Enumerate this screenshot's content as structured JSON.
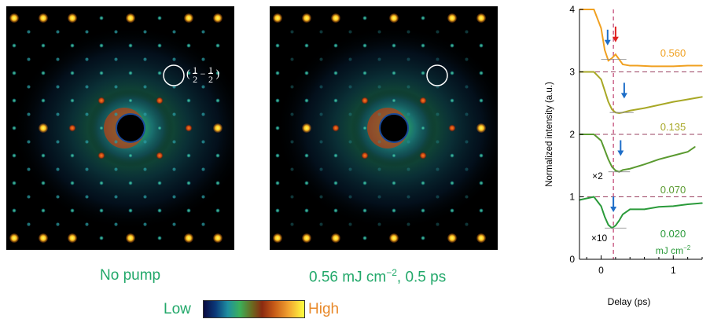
{
  "diffraction": {
    "left_caption": "No pump",
    "right_caption_main": "0.56 mJ cm",
    "right_caption_sup": "−2",
    "right_caption_tail": ", 0.5 ps",
    "peak_label": {
      "open": "(",
      "h": "1",
      "h_den": "2",
      "k": "1",
      "k_den": "2",
      "dash": "−",
      "close": ")"
    },
    "scale_low": "Low",
    "scale_high": "High"
  },
  "chart_data": {
    "type": "line",
    "xlabel": "Delay (ps)",
    "ylabel": "Normalized intensity (a.u.)",
    "xlim": [
      -0.3,
      1.4
    ],
    "ylim": [
      0,
      4
    ],
    "xticks": [
      "0",
      "1"
    ],
    "yticks": [
      "0",
      "1",
      "2",
      "3",
      "4"
    ],
    "dashed_hlines": [
      1,
      2,
      3
    ],
    "dashed_vline_x": 0.17,
    "series": [
      {
        "name": "0.560",
        "color": "#f0a020",
        "x": [
          -0.3,
          -0.1,
          0.0,
          0.05,
          0.1,
          0.15,
          0.2,
          0.25,
          0.3,
          0.4,
          0.5,
          0.7,
          1.0,
          1.2,
          1.4
        ],
        "y": [
          4.0,
          4.0,
          3.7,
          3.35,
          3.18,
          3.22,
          3.28,
          3.2,
          3.12,
          3.1,
          3.1,
          3.09,
          3.09,
          3.1,
          3.1
        ]
      },
      {
        "name": "0.135",
        "color": "#a8a826",
        "x": [
          -0.3,
          -0.1,
          0.0,
          0.05,
          0.1,
          0.15,
          0.2,
          0.25,
          0.3,
          0.4,
          0.6,
          0.8,
          1.0,
          1.2,
          1.4
        ],
        "y": [
          3.0,
          3.0,
          2.88,
          2.7,
          2.52,
          2.4,
          2.35,
          2.34,
          2.35,
          2.38,
          2.42,
          2.47,
          2.52,
          2.56,
          2.6
        ]
      },
      {
        "name": "0.070",
        "color": "#5a9a30",
        "x": [
          -0.3,
          -0.1,
          0.0,
          0.05,
          0.1,
          0.15,
          0.2,
          0.25,
          0.3,
          0.4,
          0.6,
          0.8,
          1.0,
          1.2,
          1.3
        ],
        "y": [
          2.0,
          2.0,
          1.9,
          1.75,
          1.6,
          1.48,
          1.42,
          1.4,
          1.43,
          1.45,
          1.52,
          1.6,
          1.66,
          1.72,
          1.8
        ]
      },
      {
        "name": "0.020",
        "color": "#2a9a3a",
        "x": [
          -0.3,
          -0.1,
          0.0,
          0.05,
          0.1,
          0.15,
          0.2,
          0.25,
          0.3,
          0.4,
          0.6,
          0.8,
          1.0,
          1.2,
          1.4
        ],
        "y": [
          0.95,
          1.0,
          0.85,
          0.68,
          0.55,
          0.5,
          0.54,
          0.62,
          0.72,
          0.8,
          0.8,
          0.84,
          0.85,
          0.88,
          0.9
        ]
      }
    ],
    "fluence_unit": "mJ cm",
    "fluence_unit_sup": "−2",
    "multiplier_labels": [
      "×2",
      "×10"
    ],
    "arrows": [
      {
        "x": 0.09,
        "y": 3.55,
        "color": "#1e6ec8"
      },
      {
        "x": 0.2,
        "y": 3.6,
        "color": "#e02020"
      },
      {
        "x": 0.32,
        "y": 2.7,
        "color": "#1e6ec8"
      },
      {
        "x": 0.27,
        "y": 1.78,
        "color": "#1e6ec8"
      },
      {
        "x": 0.17,
        "y": 0.88,
        "color": "#1e6ec8"
      }
    ]
  }
}
